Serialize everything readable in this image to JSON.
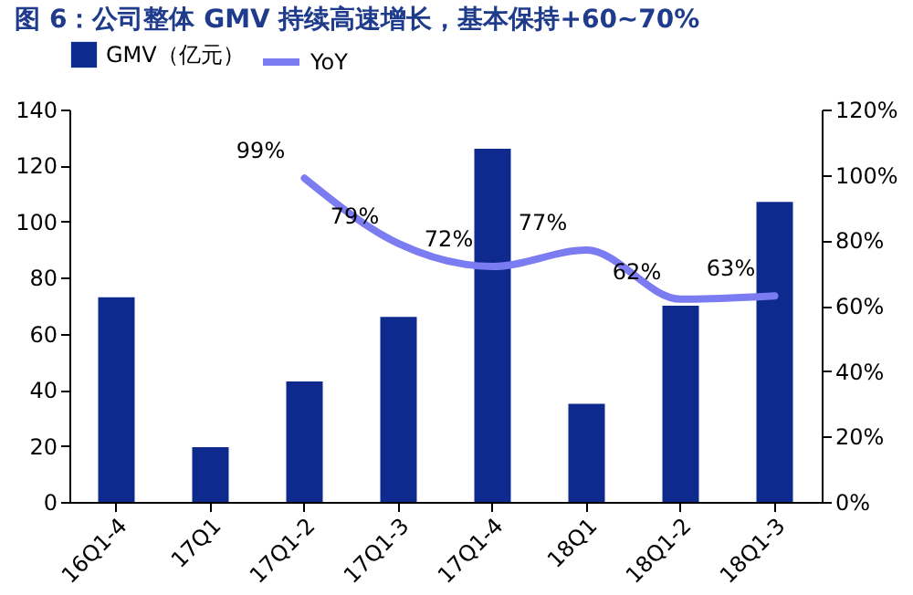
{
  "chart_data": {
    "type": "bar",
    "title": "图 6：公司整体 GMV 持续高速增长，基本保持+60~70%",
    "categories": [
      "16Q1-4",
      "17Q1",
      "17Q1-2",
      "17Q1-3",
      "17Q1-4",
      "18Q1",
      "18Q1-2",
      "18Q1-3"
    ],
    "series": [
      {
        "name": "GMV（亿元）",
        "color": "#0f2a8e",
        "values": [
          73,
          19.5,
          43,
          66,
          126,
          35,
          70,
          107
        ]
      },
      {
        "name": "YoY",
        "type": "line",
        "axis": "y2",
        "color": "#7b7bf2",
        "values": [
          null,
          null,
          99,
          79,
          72,
          77,
          62,
          63
        ],
        "value_labels": [
          null,
          null,
          "99%",
          "79%",
          "72%",
          "77%",
          "62%",
          "63%"
        ]
      }
    ],
    "ylim": [
      0,
      140
    ],
    "yticks": [
      0,
      20,
      40,
      60,
      80,
      100,
      120,
      140
    ],
    "y2lim": [
      0,
      120
    ],
    "y2ticks": [
      {
        "value": 0,
        "label": "0%"
      },
      {
        "value": 20,
        "label": "20%"
      },
      {
        "value": 40,
        "label": "40%"
      },
      {
        "value": 60,
        "label": "60%"
      },
      {
        "value": 80,
        "label": "80%"
      },
      {
        "value": 100,
        "label": "100%"
      },
      {
        "value": 120,
        "label": "120%"
      }
    ],
    "grid": false,
    "legend": "top"
  }
}
